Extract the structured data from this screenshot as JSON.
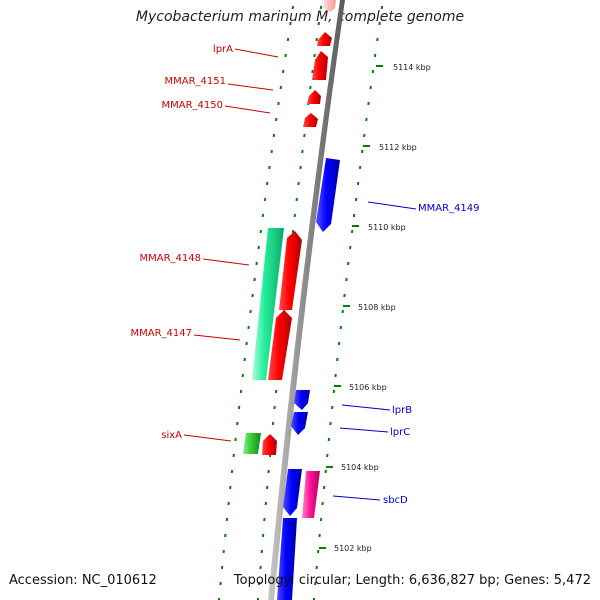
{
  "map": {
    "title": "Mycobacterium marinum M, complete genome",
    "accession": "Accession: NC_010612",
    "summary": "Topology: circular; Length: 6,636,827 bp; Genes: 5,472",
    "colors": {
      "forward_label": "#cc0000",
      "reverse_label": "#0000cc",
      "backbone": "#8a8a8a",
      "tick": "#008000"
    }
  },
  "ticks": [
    "5114 kbp",
    "5112 kbp",
    "5110 kbp",
    "5108 kbp",
    "5106 kbp",
    "5104 kbp",
    "5102 kbp"
  ],
  "labels": [
    {
      "text": "lprA",
      "side": "left"
    },
    {
      "text": "MMAR_4151",
      "side": "left"
    },
    {
      "text": "MMAR_4150",
      "side": "left"
    },
    {
      "text": "MMAR_4149",
      "side": "right"
    },
    {
      "text": "MMAR_4148",
      "side": "left"
    },
    {
      "text": "MMAR_4147",
      "side": "left"
    },
    {
      "text": "lprB",
      "side": "right"
    },
    {
      "text": "lprC",
      "side": "right"
    },
    {
      "text": "sixA",
      "side": "left"
    },
    {
      "text": "sbcD",
      "side": "right"
    }
  ],
  "feature_colors": {
    "red": "#ff0000",
    "blue": "#0000ff",
    "teal": "#22ee99",
    "green": "#33cc33",
    "pink": "#ff1493",
    "light_pink": "#ffbbbb"
  }
}
